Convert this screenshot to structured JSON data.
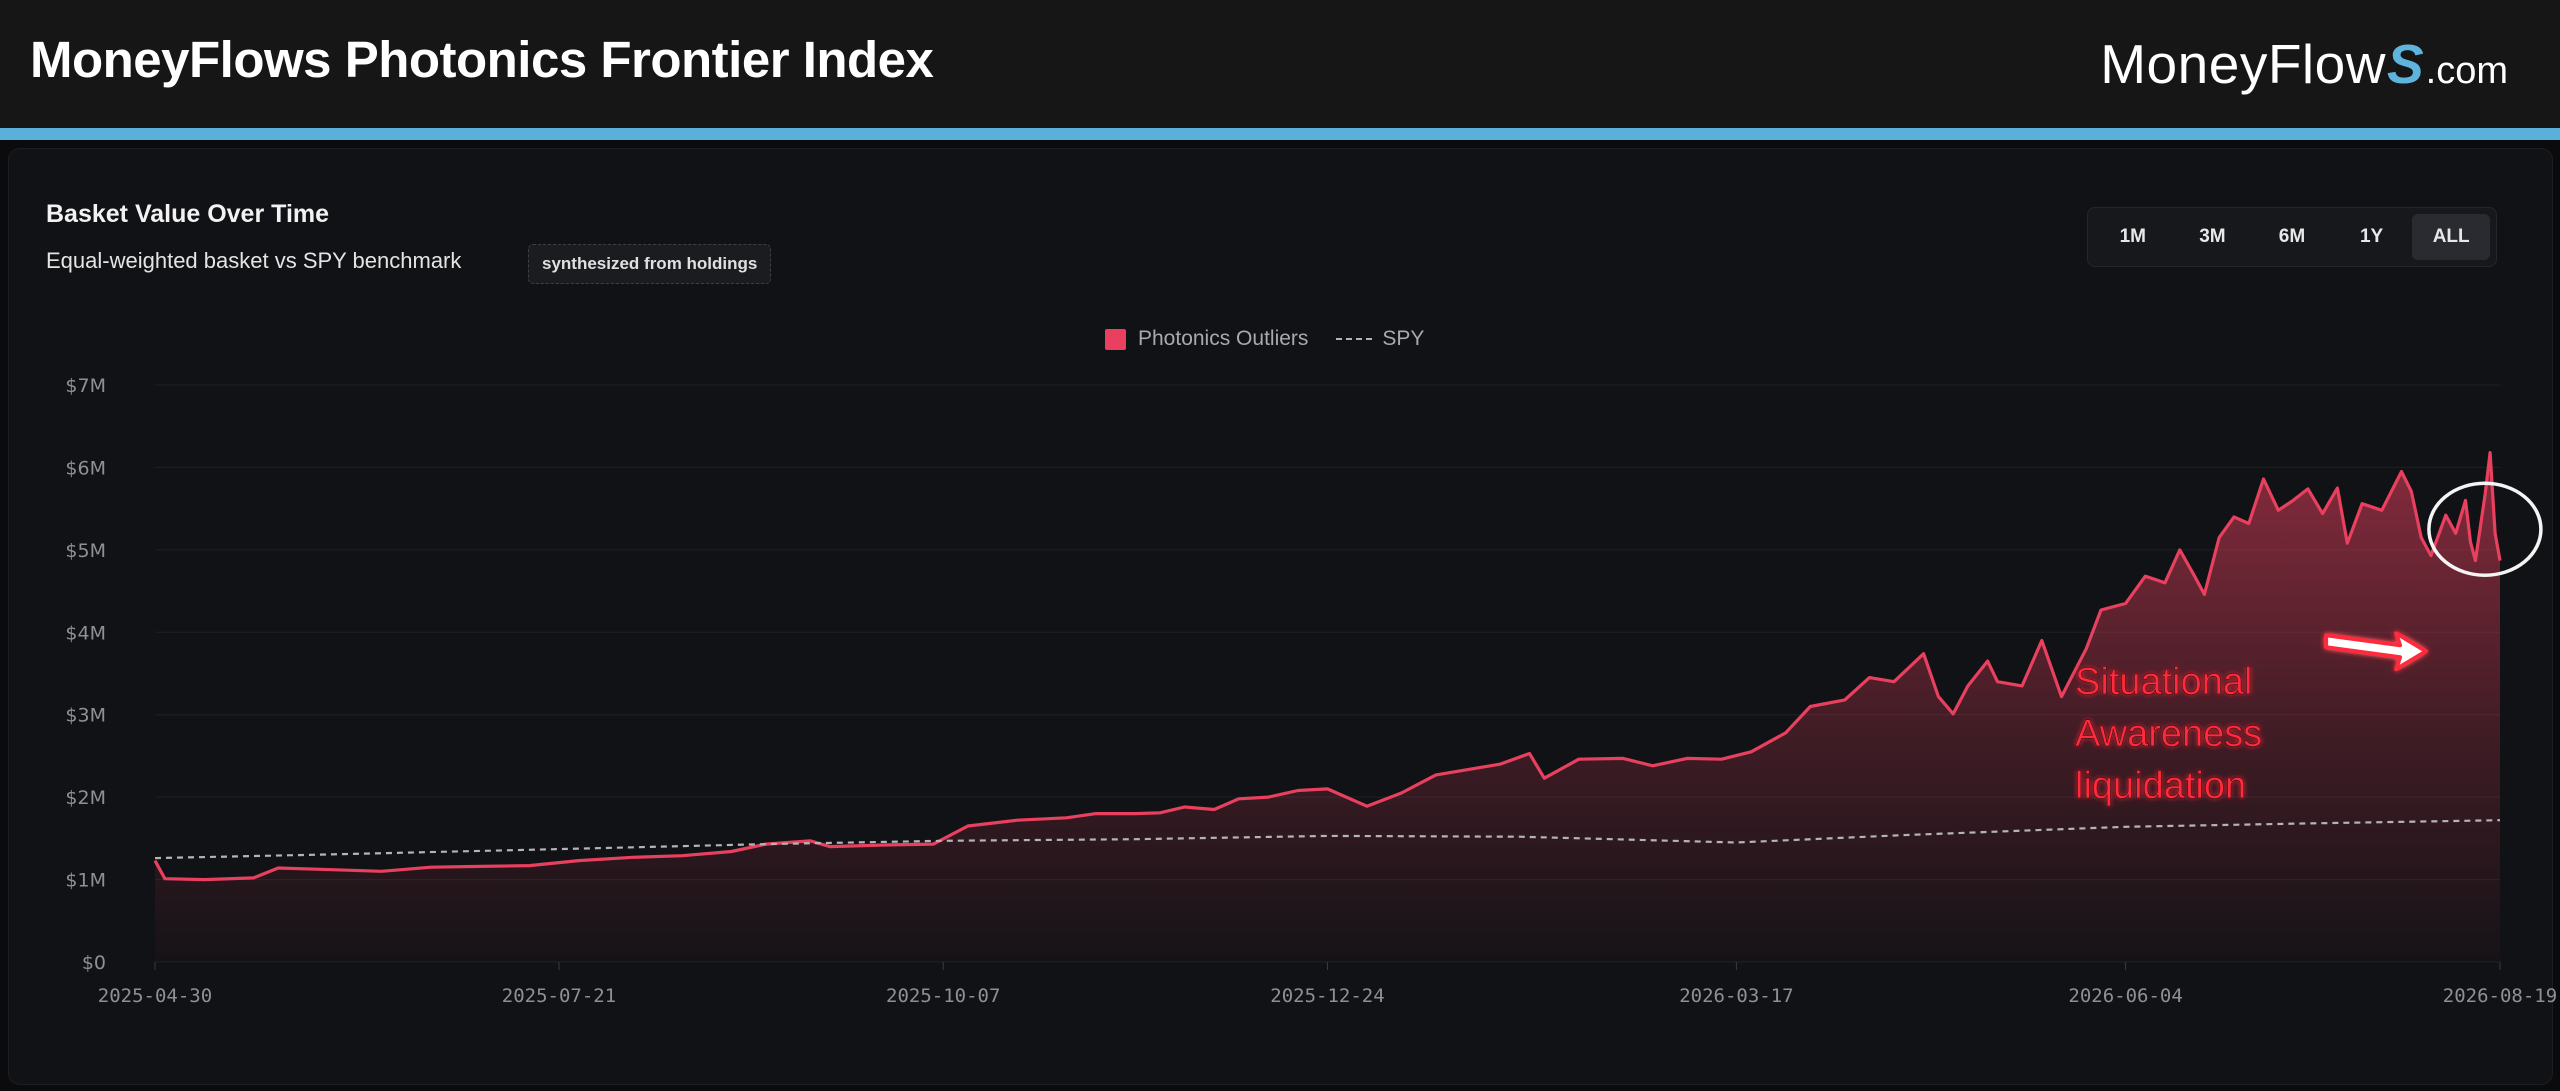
{
  "header": {
    "title": "MoneyFlows Photonics Frontier Index",
    "brand_main": "MoneyFlow",
    "brand_s": "S",
    "brand_domain": ".com"
  },
  "card": {
    "title": "Basket Value Over Time",
    "subtitle": "Equal-weighted basket vs SPY benchmark",
    "badge": "synthesized from holdings"
  },
  "range_buttons": [
    {
      "label": "1M",
      "active": false
    },
    {
      "label": "3M",
      "active": false
    },
    {
      "label": "6M",
      "active": false
    },
    {
      "label": "1Y",
      "active": false
    },
    {
      "label": "ALL",
      "active": true
    }
  ],
  "colors": {
    "accent": "#5ab0da",
    "series_primary": "#e8405e",
    "series_benchmark": "#b4b4b8"
  },
  "annotation": {
    "text_lines": [
      "Situational",
      "Awareness",
      "liquidation"
    ],
    "color": "#ff2a3a",
    "target_date": "2026-08-04",
    "circled_range": [
      "2026-08-08",
      "2026-08-19"
    ]
  },
  "chart_data": {
    "type": "area",
    "title": "Basket Value Over Time",
    "xlabel": "",
    "ylabel": "",
    "x_start": "2025-04-30",
    "x_end": "2026-08-19",
    "x_ticks": [
      "2025-04-30",
      "2025-07-21",
      "2025-10-07",
      "2025-12-24",
      "2026-03-17",
      "2026-06-04",
      "2026-08-19"
    ],
    "y_ticks": [
      "$0",
      "$1M",
      "$2M",
      "$3M",
      "$4M",
      "$5M",
      "$6M",
      "$7M"
    ],
    "ylim": [
      0,
      7000000
    ],
    "grid": true,
    "legend_position": "top-center",
    "series": [
      {
        "name": "Photonics Outliers",
        "style": "solid-area",
        "points": [
          [
            "2025-04-30",
            1230000
          ],
          [
            "2025-05-02",
            1010000
          ],
          [
            "2025-05-10",
            1000000
          ],
          [
            "2025-05-20",
            1020000
          ],
          [
            "2025-05-25",
            1140000
          ],
          [
            "2025-06-05",
            1120000
          ],
          [
            "2025-06-15",
            1100000
          ],
          [
            "2025-06-25",
            1150000
          ],
          [
            "2025-07-05",
            1160000
          ],
          [
            "2025-07-15",
            1170000
          ],
          [
            "2025-07-25",
            1230000
          ],
          [
            "2025-08-05",
            1270000
          ],
          [
            "2025-08-15",
            1290000
          ],
          [
            "2025-08-25",
            1340000
          ],
          [
            "2025-09-01",
            1430000
          ],
          [
            "2025-09-10",
            1470000
          ],
          [
            "2025-09-14",
            1400000
          ],
          [
            "2025-09-25",
            1420000
          ],
          [
            "2025-10-05",
            1430000
          ],
          [
            "2025-10-12",
            1650000
          ],
          [
            "2025-10-22",
            1720000
          ],
          [
            "2025-11-01",
            1750000
          ],
          [
            "2025-11-07",
            1800000
          ],
          [
            "2025-11-15",
            1800000
          ],
          [
            "2025-11-20",
            1810000
          ],
          [
            "2025-11-25",
            1880000
          ],
          [
            "2025-12-01",
            1850000
          ],
          [
            "2025-12-06",
            1980000
          ],
          [
            "2025-12-12",
            2000000
          ],
          [
            "2025-12-18",
            2080000
          ],
          [
            "2025-12-24",
            2100000
          ],
          [
            "2026-01-01",
            1890000
          ],
          [
            "2026-01-08",
            2050000
          ],
          [
            "2026-01-15",
            2270000
          ],
          [
            "2026-01-28",
            2400000
          ],
          [
            "2026-02-03",
            2530000
          ],
          [
            "2026-02-06",
            2230000
          ],
          [
            "2026-02-13",
            2460000
          ],
          [
            "2026-02-22",
            2470000
          ],
          [
            "2026-02-28",
            2380000
          ],
          [
            "2026-03-07",
            2470000
          ],
          [
            "2026-03-14",
            2460000
          ],
          [
            "2026-03-20",
            2550000
          ],
          [
            "2026-03-27",
            2780000
          ],
          [
            "2026-04-01",
            3100000
          ],
          [
            "2026-04-08",
            3180000
          ],
          [
            "2026-04-13",
            3450000
          ],
          [
            "2026-04-18",
            3400000
          ],
          [
            "2026-04-24",
            3740000
          ],
          [
            "2026-04-27",
            3220000
          ],
          [
            "2026-04-30",
            3010000
          ],
          [
            "2026-05-03",
            3350000
          ],
          [
            "2026-05-07",
            3650000
          ],
          [
            "2026-05-09",
            3400000
          ],
          [
            "2026-05-14",
            3350000
          ],
          [
            "2026-05-18",
            3900000
          ],
          [
            "2026-05-22",
            3220000
          ],
          [
            "2026-05-27",
            3800000
          ],
          [
            "2026-05-30",
            4270000
          ],
          [
            "2026-06-04",
            4350000
          ],
          [
            "2026-06-08",
            4680000
          ],
          [
            "2026-06-12",
            4600000
          ],
          [
            "2026-06-15",
            5000000
          ],
          [
            "2026-06-18",
            4680000
          ],
          [
            "2026-06-20",
            4460000
          ],
          [
            "2026-06-23",
            5150000
          ],
          [
            "2026-06-26",
            5400000
          ],
          [
            "2026-06-29",
            5320000
          ],
          [
            "2026-07-02",
            5860000
          ],
          [
            "2026-07-05",
            5480000
          ],
          [
            "2026-07-08",
            5600000
          ],
          [
            "2026-07-11",
            5740000
          ],
          [
            "2026-07-14",
            5440000
          ],
          [
            "2026-07-17",
            5750000
          ],
          [
            "2026-07-19",
            5080000
          ],
          [
            "2026-07-22",
            5560000
          ],
          [
            "2026-07-26",
            5480000
          ],
          [
            "2026-07-30",
            5950000
          ],
          [
            "2026-08-01",
            5710000
          ],
          [
            "2026-08-03",
            5150000
          ],
          [
            "2026-08-05",
            4930000
          ],
          [
            "2026-08-08",
            5420000
          ],
          [
            "2026-08-10",
            5200000
          ],
          [
            "2026-08-12",
            5600000
          ],
          [
            "2026-08-13",
            5100000
          ],
          [
            "2026-08-14",
            4870000
          ],
          [
            "2026-08-16",
            5680000
          ],
          [
            "2026-08-17",
            6180000
          ],
          [
            "2026-08-18",
            5200000
          ],
          [
            "2026-08-19",
            4870000
          ]
        ]
      },
      {
        "name": "SPY",
        "style": "dashed",
        "points": [
          [
            "2025-04-30",
            1260000
          ],
          [
            "2025-06-01",
            1300000
          ],
          [
            "2025-07-21",
            1370000
          ],
          [
            "2025-09-01",
            1430000
          ],
          [
            "2025-10-07",
            1470000
          ],
          [
            "2025-11-15",
            1490000
          ],
          [
            "2025-12-24",
            1530000
          ],
          [
            "2026-02-01",
            1520000
          ],
          [
            "2026-03-17",
            1450000
          ],
          [
            "2026-04-20",
            1540000
          ],
          [
            "2026-06-04",
            1640000
          ],
          [
            "2026-07-10",
            1680000
          ],
          [
            "2026-08-19",
            1720000
          ]
        ]
      }
    ]
  }
}
